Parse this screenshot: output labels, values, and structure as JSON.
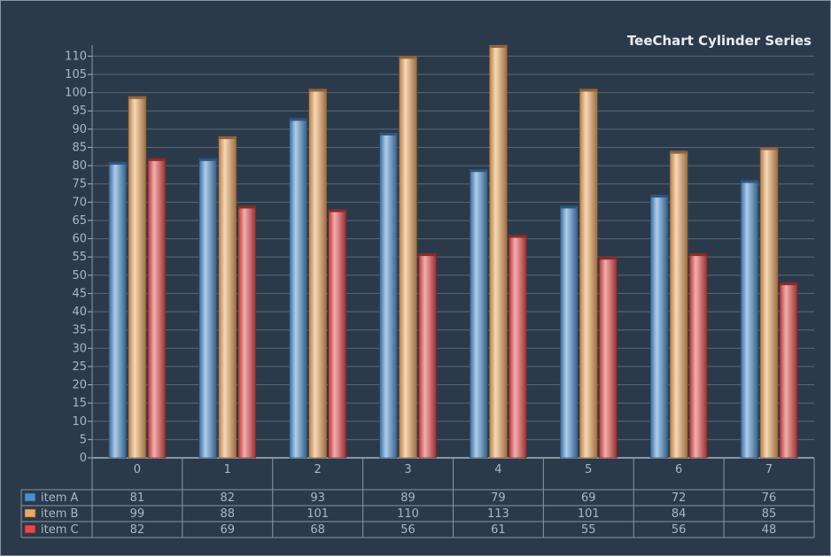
{
  "chart_data": {
    "type": "bar",
    "title": "TeeChart Cylinder Series",
    "categories": [
      "0",
      "1",
      "2",
      "3",
      "4",
      "5",
      "6",
      "7"
    ],
    "series": [
      {
        "name": "item A",
        "color": "#4a8fd0",
        "values": [
          81,
          82,
          93,
          89,
          79,
          69,
          72,
          76
        ]
      },
      {
        "name": "item B",
        "color": "#f0a860",
        "values": [
          99,
          88,
          101,
          110,
          113,
          101,
          84,
          85
        ]
      },
      {
        "name": "item C",
        "color": "#e84848",
        "values": [
          82,
          69,
          68,
          56,
          61,
          55,
          56,
          48
        ]
      }
    ],
    "ylim": [
      0,
      110
    ],
    "ytick_step": 5,
    "grid": true,
    "legend": "data table below chart",
    "colors": {
      "background": "#2b3a4b",
      "grid": "#5b6876",
      "text": "#aab6c3",
      "title": "#e8edf2"
    }
  }
}
